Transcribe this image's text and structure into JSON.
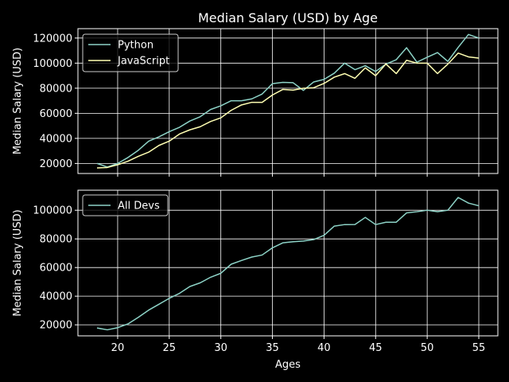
{
  "chart_data": [
    {
      "type": "line",
      "title": "Median Salary (USD) by Age",
      "xlabel": "",
      "ylabel": "Median Salary (USD)",
      "xlim": [
        16.15,
        56.85
      ],
      "ylim": [
        12000,
        127500
      ],
      "yticks": [
        20000,
        40000,
        60000,
        80000,
        100000,
        120000
      ],
      "grid": true,
      "legend": "upper-left",
      "x": [
        18,
        19,
        20,
        21,
        22,
        23,
        24,
        25,
        26,
        27,
        28,
        29,
        30,
        31,
        32,
        33,
        34,
        35,
        36,
        37,
        38,
        39,
        40,
        41,
        42,
        43,
        44,
        45,
        46,
        47,
        48,
        49,
        50,
        51,
        52,
        53,
        54,
        55
      ],
      "series": [
        {
          "name": "Python",
          "color": "#8dd3c7",
          "values": [
            20046,
            17100,
            20000,
            24744,
            30500,
            37732,
            41247,
            45372,
            48876,
            53850,
            57287,
            63016,
            65998,
            70003,
            70000,
            71496,
            75370,
            83640,
            84666,
            84392,
            78254,
            85000,
            87038,
            91991,
            100000,
            94796,
            97962,
            93302,
            99240,
            102736,
            112285,
            100771,
            104708,
            108423,
            101407,
            112542,
            122870,
            120000
          ]
        },
        {
          "name": "JavaScript",
          "color": "#ffffb3",
          "values": [
            16446,
            16791,
            18942,
            21780,
            25704,
            29000,
            34372,
            37810,
            43515,
            46823,
            49293,
            53437,
            56373,
            62375,
            66674,
            68745,
            68746,
            74583,
            79000,
            78508,
            79996,
            80403,
            83820,
            88833,
            91660,
            87892,
            96243,
            90000,
            99313,
            91660,
            102264,
            100000,
            100000,
            91660,
            99240,
            108000,
            105000,
            104000
          ]
        }
      ]
    },
    {
      "type": "line",
      "title": "",
      "xlabel": "Ages",
      "ylabel": "Median Salary (USD)",
      "xlim": [
        16.15,
        56.85
      ],
      "ylim": [
        12300,
        114000
      ],
      "xticks": [
        20,
        25,
        30,
        35,
        40,
        45,
        50,
        55
      ],
      "yticks": [
        20000,
        40000,
        60000,
        80000,
        100000
      ],
      "grid": true,
      "legend": "upper-left",
      "x": [
        18,
        19,
        20,
        21,
        22,
        23,
        24,
        25,
        26,
        27,
        28,
        29,
        30,
        31,
        32,
        33,
        34,
        35,
        36,
        37,
        38,
        39,
        40,
        41,
        42,
        43,
        44,
        45,
        46,
        47,
        48,
        49,
        50,
        51,
        52,
        53,
        54,
        55
      ],
      "series": [
        {
          "name": "All Devs",
          "color": "#8dd3c7",
          "values": [
            17784,
            16500,
            18012,
            20628,
            25206,
            30252,
            34368,
            38496,
            42000,
            46752,
            49320,
            53200,
            56000,
            62316,
            64928,
            67317,
            68748,
            73752,
            77232,
            78000,
            78508,
            79536,
            82488,
            88935,
            90000,
            90056,
            95000,
            90000,
            91633,
            91660,
            98150,
            98964,
            100000,
            98988,
            100000,
            108923,
            105000,
            103117
          ]
        }
      ]
    }
  ]
}
